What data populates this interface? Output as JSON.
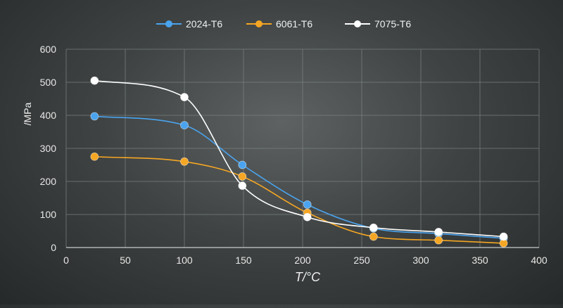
{
  "chart_data": {
    "type": "line",
    "title": "",
    "xlabel": "T/°C",
    "ylabel": "/MPa",
    "xlim": [
      0,
      400
    ],
    "ylim": [
      0,
      600
    ],
    "x_ticks": [
      0,
      50,
      100,
      150,
      200,
      250,
      300,
      350,
      400
    ],
    "y_ticks": [
      0,
      100,
      200,
      300,
      400,
      500,
      600
    ],
    "grid": true,
    "legend_position": "top-center",
    "x": [
      24,
      100,
      149,
      204,
      260,
      315,
      370
    ],
    "series": [
      {
        "name": "2024-T6",
        "color": "#4aa3ee",
        "values": [
          397,
          370,
          250,
          130,
          58,
          42,
          28
        ]
      },
      {
        "name": "6061-T6",
        "color": "#f5a623",
        "values": [
          275,
          260,
          215,
          105,
          33,
          22,
          13
        ]
      },
      {
        "name": "7075-T6",
        "color": "#ffffff",
        "values": [
          505,
          455,
          187,
          92,
          60,
          47,
          33
        ]
      }
    ]
  }
}
